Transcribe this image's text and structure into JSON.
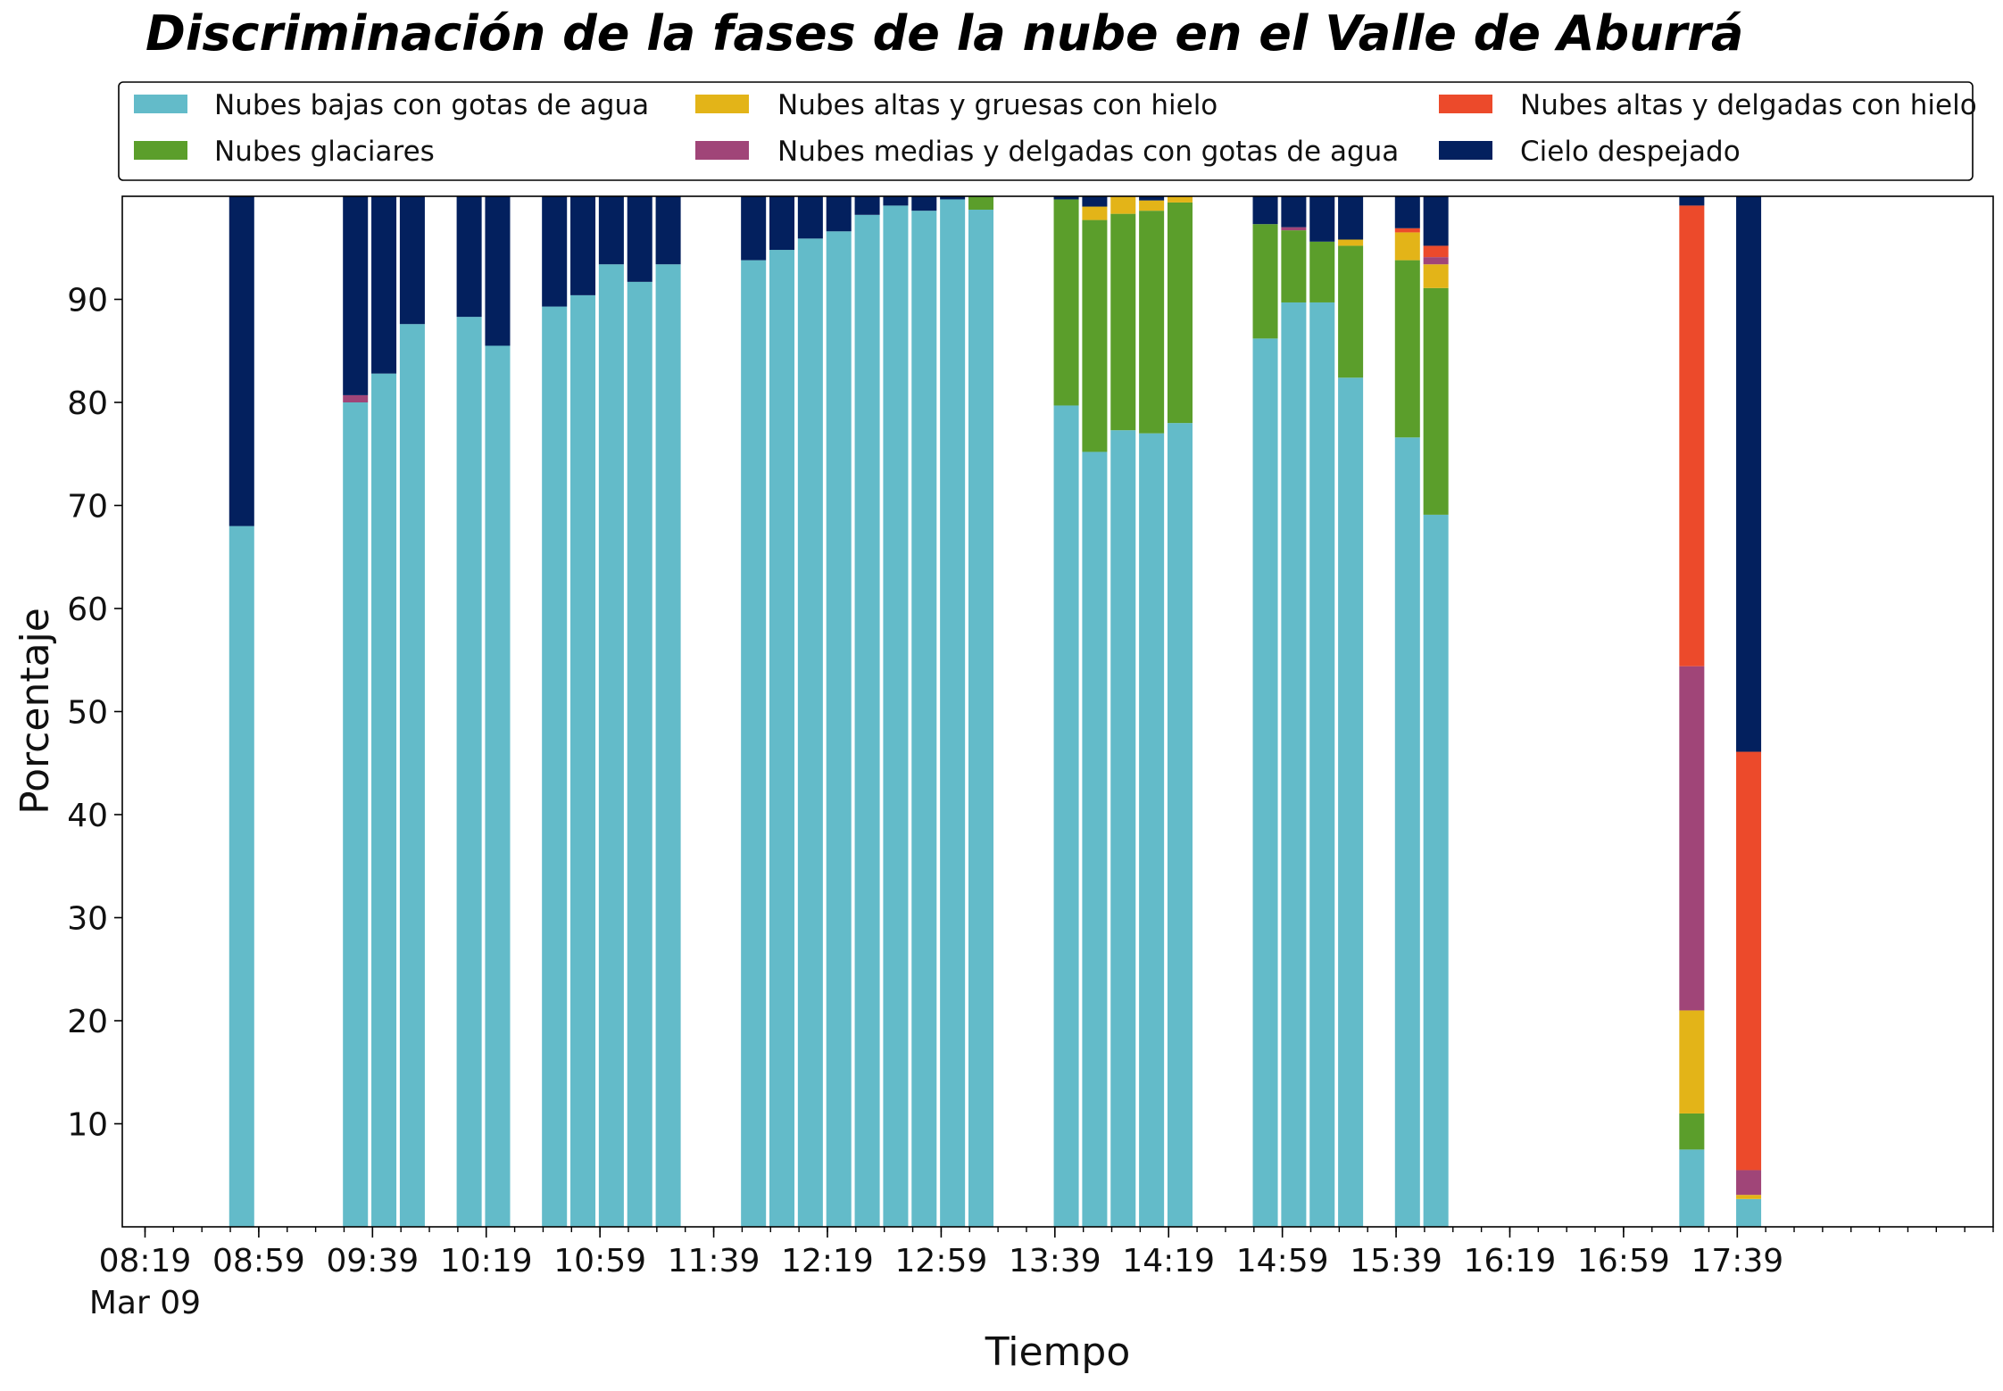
{
  "chart_data": {
    "type": "bar",
    "stacked": true,
    "title": "Discriminación de la fases de la nube en el Valle de Aburrá",
    "xlabel": "Tiempo",
    "ylabel": "Porcentaje",
    "ylim": [
      0,
      100
    ],
    "yticks": [
      10,
      20,
      30,
      40,
      50,
      60,
      70,
      80,
      90
    ],
    "grid": false,
    "legend_placement": "top",
    "x_unit": "minutes",
    "xlim": [
      "08:11",
      "19:09"
    ],
    "xticks": [
      {
        "time": "08:19",
        "label": "08:19",
        "sublabel": "Mar 09"
      },
      {
        "time": "08:59",
        "label": "08:59"
      },
      {
        "time": "09:39",
        "label": "09:39"
      },
      {
        "time": "10:19",
        "label": "10:19"
      },
      {
        "time": "10:59",
        "label": "10:59"
      },
      {
        "time": "11:39",
        "label": "11:39"
      },
      {
        "time": "12:19",
        "label": "12:19"
      },
      {
        "time": "12:59",
        "label": "12:59"
      },
      {
        "time": "13:39",
        "label": "13:39"
      },
      {
        "time": "14:19",
        "label": "14:19"
      },
      {
        "time": "14:59",
        "label": "14:59"
      },
      {
        "time": "15:39",
        "label": "15:39"
      },
      {
        "time": "16:19",
        "label": "16:19"
      },
      {
        "time": "16:59",
        "label": "16:59"
      },
      {
        "time": "17:39",
        "label": "17:39"
      }
    ],
    "minor_tick_minutes": 10,
    "series": [
      {
        "name": "Nubes bajas con gotas de agua",
        "color": "#63bbc9"
      },
      {
        "name": "Nubes glaciares",
        "color": "#5b9e2b"
      },
      {
        "name": "Nubes altas y gruesas con hielo",
        "color": "#e3b418"
      },
      {
        "name": "Nubes medias y delgadas con gotas de agua",
        "color": "#a04578"
      },
      {
        "name": "Nubes altas y delgadas con hielo",
        "color": "#ec4a2b"
      },
      {
        "name": "Cielo despejado",
        "color": "#03205e"
      }
    ],
    "bars": [
      {
        "time": "08:53",
        "values": [
          68,
          0,
          0,
          0,
          0,
          32
        ]
      },
      {
        "time": "09:33",
        "values": [
          80,
          0,
          0,
          0.7,
          0,
          19.3
        ]
      },
      {
        "time": "09:43",
        "values": [
          82.8,
          0,
          0,
          0,
          0,
          17.2
        ]
      },
      {
        "time": "09:53",
        "values": [
          87.6,
          0,
          0,
          0,
          0,
          12.4
        ]
      },
      {
        "time": "10:13",
        "values": [
          88.3,
          0,
          0,
          0,
          0,
          11.7
        ]
      },
      {
        "time": "10:23",
        "values": [
          85.5,
          0,
          0,
          0,
          0,
          14.5
        ]
      },
      {
        "time": "10:43",
        "values": [
          89.3,
          0,
          0,
          0,
          0,
          10.7
        ]
      },
      {
        "time": "10:53",
        "values": [
          90.4,
          0,
          0,
          0,
          0,
          9.6
        ]
      },
      {
        "time": "11:03",
        "values": [
          93.4,
          0,
          0,
          0,
          0,
          6.6
        ]
      },
      {
        "time": "11:13",
        "values": [
          91.7,
          0,
          0,
          0,
          0,
          8.3
        ]
      },
      {
        "time": "11:23",
        "values": [
          93.4,
          0,
          0,
          0,
          0,
          6.6
        ]
      },
      {
        "time": "11:53",
        "values": [
          93.8,
          0,
          0,
          0,
          0,
          6.2
        ]
      },
      {
        "time": "12:03",
        "values": [
          94.8,
          0,
          0,
          0,
          0,
          5.2
        ]
      },
      {
        "time": "12:13",
        "values": [
          95.9,
          0,
          0,
          0,
          0,
          4.1
        ]
      },
      {
        "time": "12:23",
        "values": [
          96.6,
          0,
          0,
          0,
          0,
          3.4
        ]
      },
      {
        "time": "12:33",
        "values": [
          98.2,
          0,
          0,
          0,
          0,
          1.8
        ]
      },
      {
        "time": "12:43",
        "values": [
          99.1,
          0,
          0,
          0,
          0,
          0.9
        ]
      },
      {
        "time": "12:53",
        "values": [
          98.6,
          0,
          0,
          0,
          0,
          1.4
        ]
      },
      {
        "time": "13:03",
        "values": [
          99.7,
          0,
          0,
          0,
          0,
          0.3
        ]
      },
      {
        "time": "13:13",
        "values": [
          98.7,
          1.3,
          0,
          0,
          0,
          0
        ]
      },
      {
        "time": "13:43",
        "values": [
          79.7,
          20,
          0,
          0,
          0,
          0.3
        ]
      },
      {
        "time": "13:53",
        "values": [
          75.2,
          22.5,
          1.3,
          0,
          0,
          1
        ]
      },
      {
        "time": "14:03",
        "values": [
          77.3,
          21,
          1.7,
          0,
          0,
          0
        ]
      },
      {
        "time": "14:13",
        "values": [
          77,
          21.6,
          1,
          0,
          0,
          0.4
        ]
      },
      {
        "time": "14:23",
        "values": [
          78,
          21.4,
          0.6,
          0,
          0,
          0
        ]
      },
      {
        "time": "14:53",
        "values": [
          86.2,
          11.1,
          0,
          0,
          0,
          2.7
        ]
      },
      {
        "time": "15:03",
        "values": [
          89.7,
          7,
          0,
          0.3,
          0,
          3
        ]
      },
      {
        "time": "15:13",
        "values": [
          89.7,
          5.9,
          0,
          0,
          0,
          4.4
        ]
      },
      {
        "time": "15:23",
        "values": [
          82.4,
          12.8,
          0.6,
          0,
          0,
          4.2
        ]
      },
      {
        "time": "15:43",
        "values": [
          76.6,
          17.2,
          2.7,
          0,
          0.4,
          3.1
        ]
      },
      {
        "time": "15:53",
        "values": [
          69.1,
          22,
          2.3,
          0.7,
          1.1,
          4.8
        ]
      },
      {
        "time": "17:23",
        "values": [
          7.5,
          3.5,
          10,
          33.4,
          44.7,
          0.9
        ]
      },
      {
        "time": "17:43",
        "values": [
          2.7,
          0,
          0.4,
          2.4,
          40.6,
          53.9
        ]
      }
    ]
  }
}
